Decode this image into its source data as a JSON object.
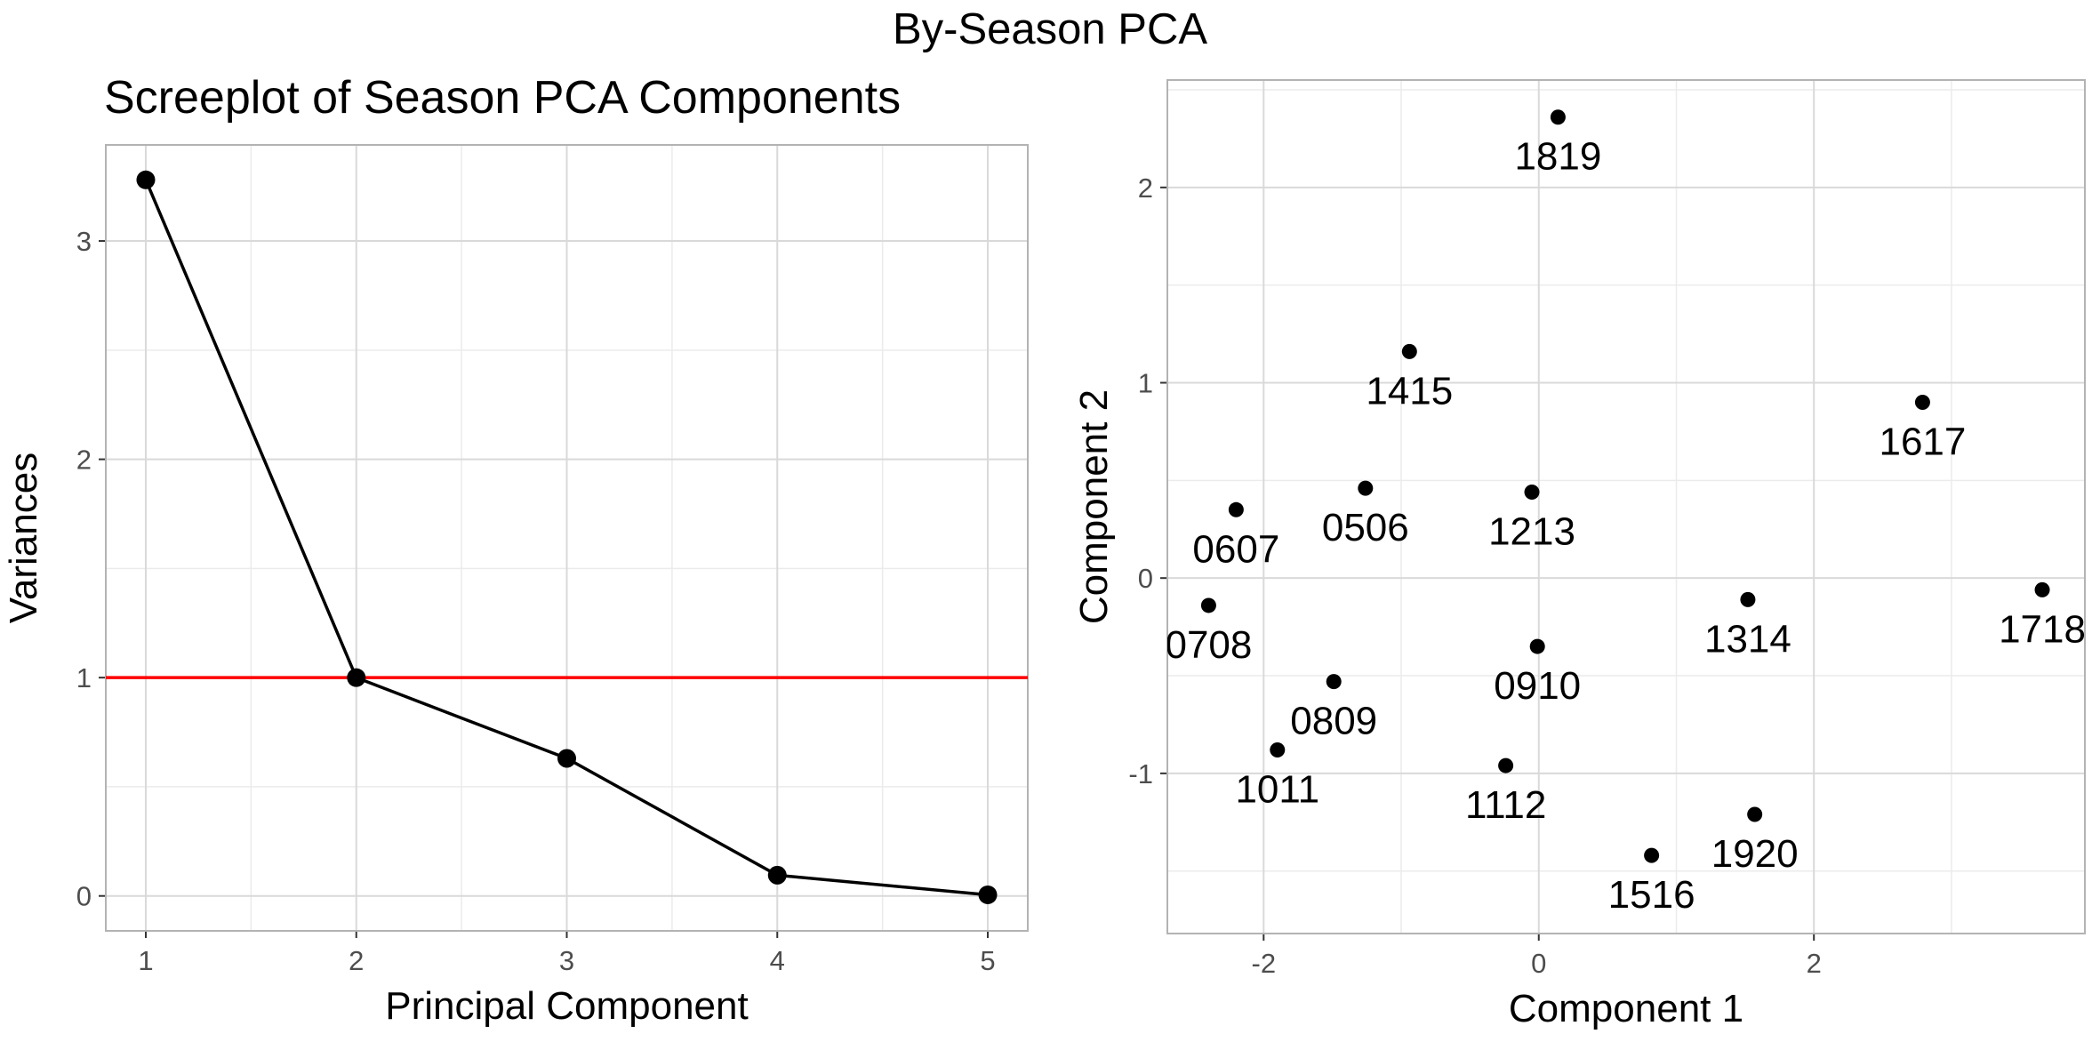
{
  "figure": {
    "title": "By-Season PCA"
  },
  "chart_data": [
    {
      "type": "line",
      "title": "Screeplot of Season PCA Components",
      "xlabel": "Principal Component",
      "ylabel": "Variances",
      "xlim": [
        0.81,
        5.19
      ],
      "ylim": [
        -0.16,
        3.44
      ],
      "x_ticks": [
        1,
        2,
        3,
        4,
        5
      ],
      "y_ticks": [
        0,
        1,
        2,
        3
      ],
      "grid": true,
      "series": [
        {
          "x": [
            1,
            2,
            3,
            4,
            5
          ],
          "values": [
            3.28,
            1.0,
            0.63,
            0.095,
            0.005
          ],
          "color": "#000000",
          "markers": true
        }
      ],
      "reference_line": {
        "y": 1,
        "color": "#ff0000"
      }
    },
    {
      "type": "scatter",
      "title": "",
      "xlabel": "Component 1",
      "ylabel": "Component 2",
      "xlim": [
        -2.7,
        3.97
      ],
      "ylim": [
        -1.82,
        2.55
      ],
      "x_ticks": [
        -2,
        0,
        2
      ],
      "y_ticks": [
        -1,
        0,
        1,
        2
      ],
      "grid": true,
      "points": [
        {
          "label": "1819",
          "x": 0.14,
          "y": 2.36
        },
        {
          "label": "1415",
          "x": -0.94,
          "y": 1.16
        },
        {
          "label": "1617",
          "x": 2.79,
          "y": 0.9
        },
        {
          "label": "0607",
          "x": -2.2,
          "y": 0.35
        },
        {
          "label": "0506",
          "x": -1.26,
          "y": 0.46
        },
        {
          "label": "1213",
          "x": -0.05,
          "y": 0.44
        },
        {
          "label": "0708",
          "x": -2.4,
          "y": -0.14
        },
        {
          "label": "1314",
          "x": 1.52,
          "y": -0.11
        },
        {
          "label": "1718",
          "x": 3.66,
          "y": -0.06
        },
        {
          "label": "0910",
          "x": -0.01,
          "y": -0.35
        },
        {
          "label": "0809",
          "x": -1.49,
          "y": -0.53
        },
        {
          "label": "1011",
          "x": -1.9,
          "y": -0.88
        },
        {
          "label": "1112",
          "x": -0.24,
          "y": -0.96
        },
        {
          "label": "1920",
          "x": 1.57,
          "y": -1.21
        },
        {
          "label": "1516",
          "x": 0.82,
          "y": -1.42
        }
      ]
    }
  ]
}
